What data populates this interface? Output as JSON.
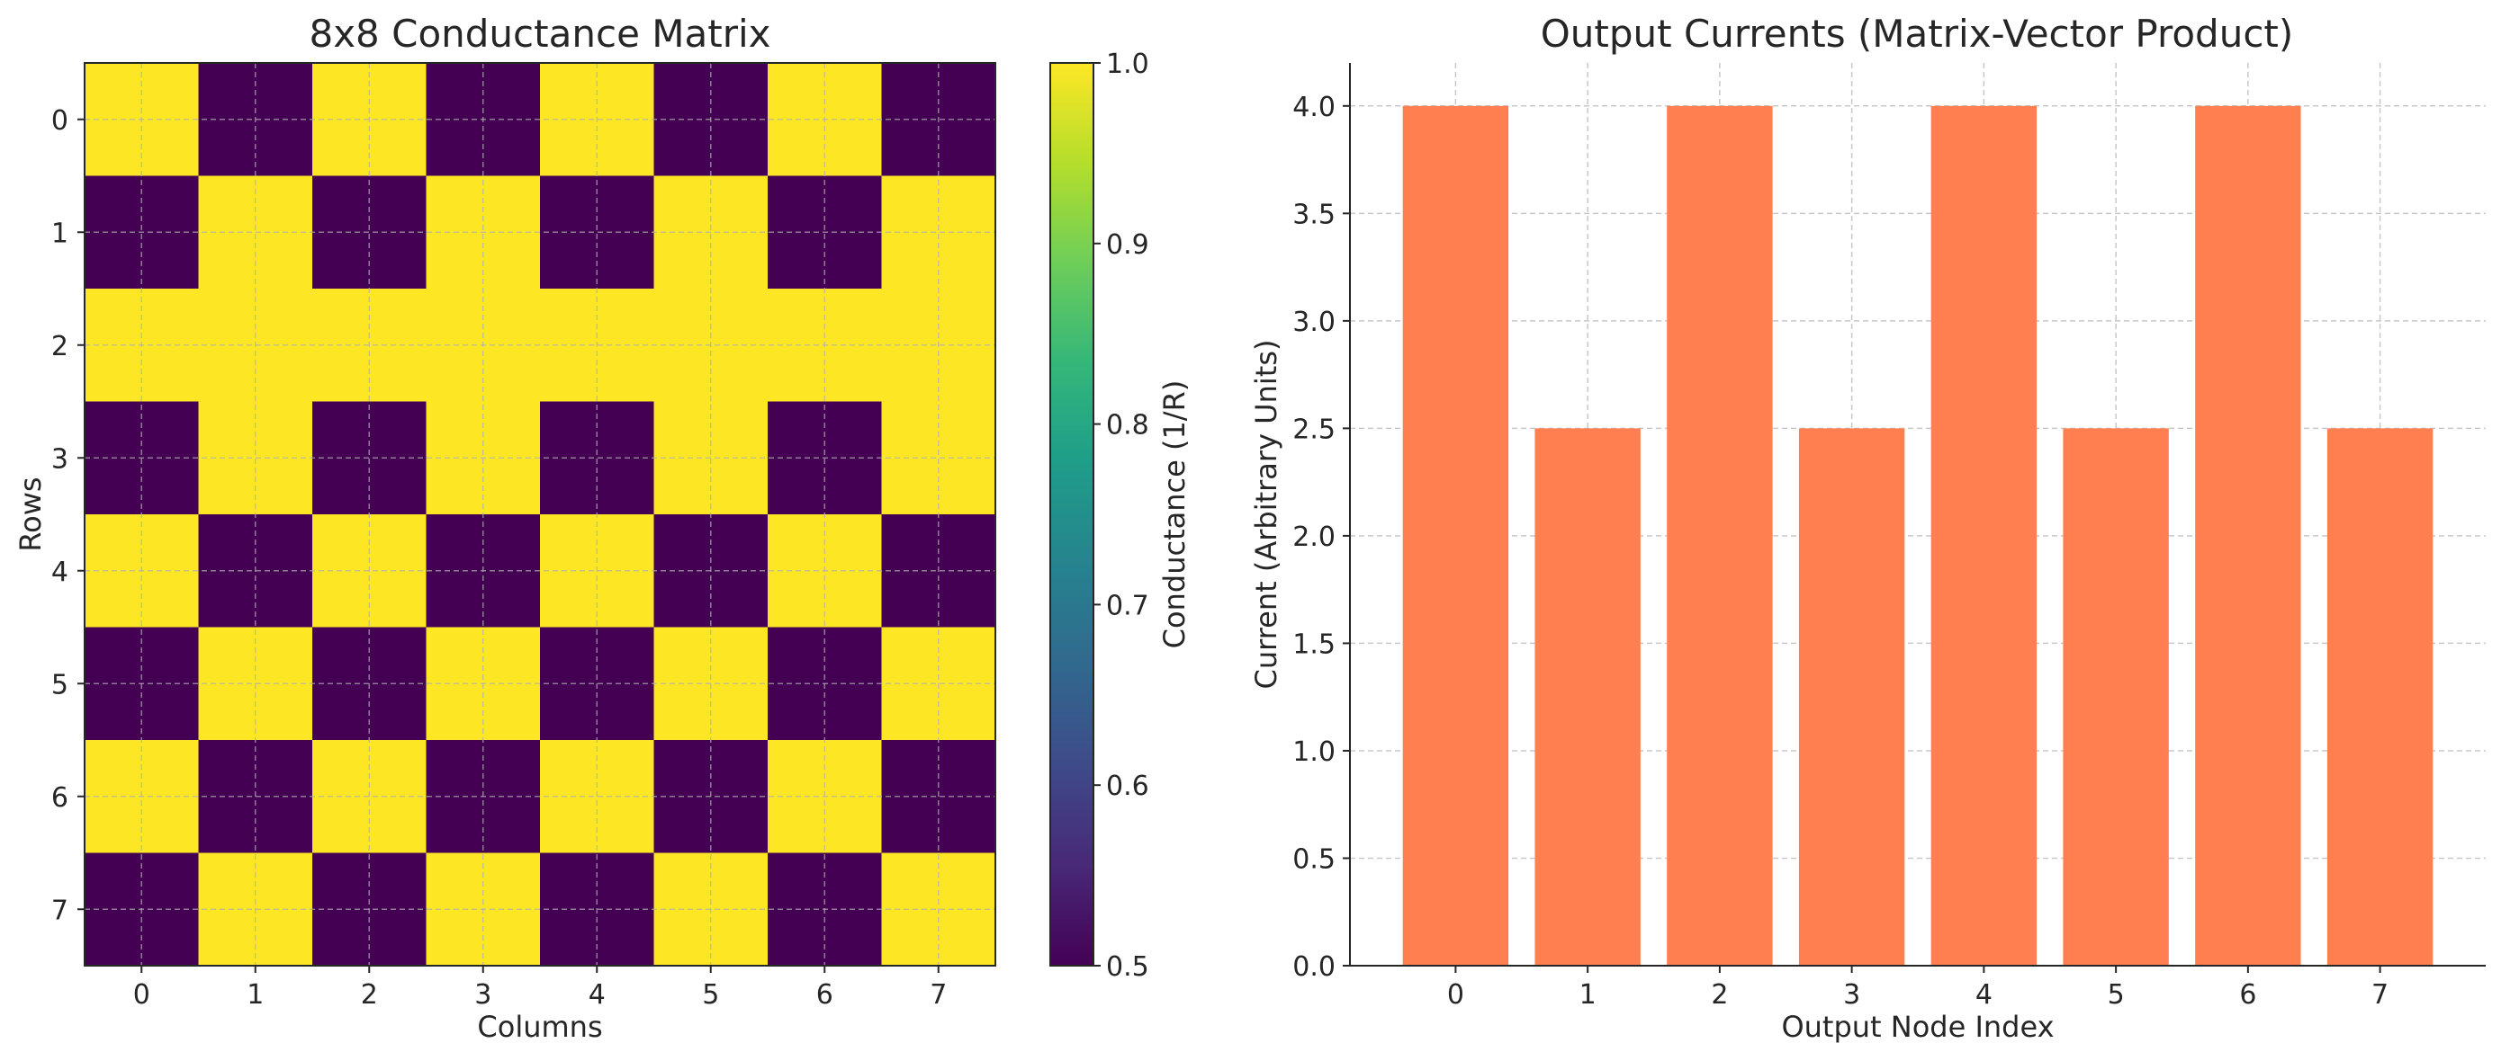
{
  "chart_data": [
    {
      "type": "heatmap",
      "title": "8x8 Conductance Matrix",
      "xlabel": "Columns",
      "ylabel": "Rows",
      "x_ticks": [
        "0",
        "1",
        "2",
        "3",
        "4",
        "5",
        "6",
        "7"
      ],
      "y_ticks": [
        "0",
        "1",
        "2",
        "3",
        "4",
        "5",
        "6",
        "7"
      ],
      "matrix": [
        [
          1.0,
          0.5,
          1.0,
          0.5,
          1.0,
          0.5,
          1.0,
          0.5
        ],
        [
          0.5,
          1.0,
          0.5,
          1.0,
          0.5,
          1.0,
          0.5,
          1.0
        ],
        [
          1.0,
          1.0,
          1.0,
          1.0,
          1.0,
          1.0,
          1.0,
          1.0
        ],
        [
          0.5,
          1.0,
          0.5,
          1.0,
          0.5,
          1.0,
          0.5,
          1.0
        ],
        [
          1.0,
          0.5,
          1.0,
          0.5,
          1.0,
          0.5,
          1.0,
          0.5
        ],
        [
          0.5,
          1.0,
          0.5,
          1.0,
          0.5,
          1.0,
          0.5,
          1.0
        ],
        [
          1.0,
          0.5,
          1.0,
          0.5,
          1.0,
          0.5,
          1.0,
          0.5
        ],
        [
          0.5,
          1.0,
          0.5,
          1.0,
          0.5,
          1.0,
          0.5,
          1.0
        ]
      ],
      "colormap": "viridis",
      "colorbar": {
        "label": "Conductance (1/R)",
        "range": [
          0.5,
          1.0
        ],
        "ticks": [
          "0.5",
          "0.6",
          "0.7",
          "0.8",
          "0.9",
          "1.0"
        ]
      },
      "grid": true
    },
    {
      "type": "bar",
      "title": "Output Currents (Matrix-Vector Product)",
      "xlabel": "Output Node Index",
      "ylabel": "Current (Arbitrary Units)",
      "categories": [
        "0",
        "1",
        "2",
        "3",
        "4",
        "5",
        "6",
        "7"
      ],
      "values": [
        4.0,
        2.5,
        4.0,
        2.5,
        4.0,
        2.5,
        4.0,
        2.5
      ],
      "ylim": [
        0,
        4.2
      ],
      "y_ticks": [
        "0.0",
        "0.5",
        "1.0",
        "1.5",
        "2.0",
        "2.5",
        "3.0",
        "3.5",
        "4.0"
      ],
      "bar_color": "#ff7f50",
      "grid": true
    }
  ]
}
